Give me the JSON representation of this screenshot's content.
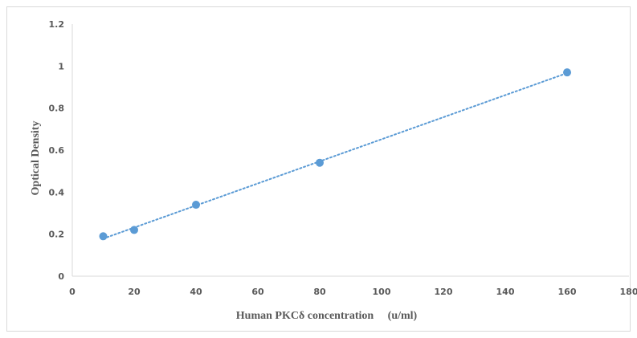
{
  "chart_data": {
    "type": "scatter",
    "title": "",
    "xlabel": "Human PKCδ concentration 　(u/ml)",
    "ylabel": "Optical Density",
    "xlim": [
      0,
      180
    ],
    "ylim": [
      0,
      1.2
    ],
    "x_ticks": [
      "0",
      "20",
      "40",
      "60",
      "80",
      "100",
      "120",
      "140",
      "160",
      "180"
    ],
    "y_ticks": [
      "0",
      "0.2",
      "0.4",
      "0.6",
      "0.8",
      "1",
      "1.2"
    ],
    "grid": false,
    "legend": "none",
    "trendline": "linear, dotted",
    "colors": {
      "marker": "#5b9bd5",
      "trendline": "#5b9bd5",
      "axis": "#d9d9d9",
      "text": "#595959"
    },
    "series": [
      {
        "x": [
          10,
          20,
          40,
          80,
          160
        ],
        "y": [
          0.19,
          0.22,
          0.34,
          0.54,
          0.97
        ]
      }
    ]
  }
}
